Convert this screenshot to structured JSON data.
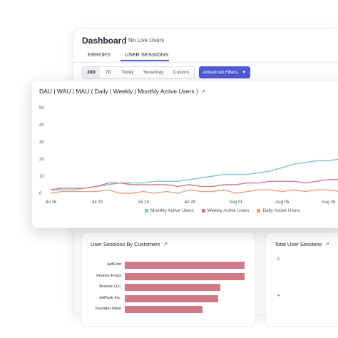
{
  "dashboard": {
    "title": "Dashboard",
    "live_users": "No Live Users",
    "tabs": [
      {
        "label": "ERRORS",
        "active": false
      },
      {
        "label": "USER SESSIONS",
        "active": true
      }
    ],
    "time_filters": [
      {
        "label": "30D",
        "selected": true
      },
      {
        "label": "7D",
        "selected": false
      },
      {
        "label": "Today",
        "selected": false
      },
      {
        "label": "Yesterday",
        "selected": false
      },
      {
        "label": "Custom",
        "selected": false
      }
    ],
    "advanced_filters_label": "Advanced Filters",
    "accent_color": "#4f5bd5"
  },
  "active_users_card": {
    "title": "DAU | WAU | MAU ( Daily | Weekly | Monthly Active Users )",
    "chart_data": {
      "type": "line",
      "x": [
        "Jul 16",
        "Jul 17",
        "Jul 18",
        "Jul 19",
        "Jul 20",
        "Jul 21",
        "Jul 22",
        "Jul 23",
        "Jul 24",
        "Jul 25",
        "Jul 26",
        "Jul 27",
        "Jul 28",
        "Jul 29",
        "Jul 30",
        "Jul 31",
        "Aug 01",
        "Aug 02",
        "Aug 03",
        "Aug 04",
        "Aug 05",
        "Aug 06",
        "Aug 07",
        "Aug 08",
        "Aug 09",
        "Aug 10"
      ],
      "x_tick_labels": [
        "Jul 16",
        "Jul 20",
        "Jul 24",
        "Jul 28",
        "Aug 01",
        "Aug 05",
        "Aug 09"
      ],
      "y_ticks": [
        0,
        10,
        20,
        30,
        40,
        50
      ],
      "ylim": [
        0,
        50
      ],
      "series": [
        {
          "name": "Monthly Active Users",
          "color": "#7fc4cf",
          "values": [
            2,
            2,
            2,
            3,
            4,
            5,
            6,
            6,
            6,
            7,
            7,
            7,
            8,
            9,
            10,
            11,
            11,
            11,
            12,
            13,
            15,
            17,
            18,
            19,
            19,
            20
          ]
        },
        {
          "name": "Weekly Active Users",
          "color": "#cf7a86",
          "values": [
            2,
            3,
            3,
            3,
            4,
            6,
            6,
            5,
            5,
            5,
            5,
            4,
            5,
            4,
            4,
            5,
            5,
            6,
            6,
            7,
            7,
            7,
            6,
            7,
            8,
            8
          ]
        },
        {
          "name": "Daily Active Users",
          "color": "#e8a07e",
          "values": [
            0,
            1,
            1,
            1,
            1,
            2,
            0,
            0,
            1,
            0,
            1,
            0,
            2,
            1,
            1,
            2,
            0,
            1,
            2,
            2,
            1,
            2,
            1,
            2,
            2,
            1
          ]
        }
      ]
    }
  },
  "customers_panel": {
    "title": "User Sessions By Customers",
    "chart_data": {
      "type": "bar",
      "categories": [
        "AidFirst",
        "Festive Fotos",
        "Brands LLC",
        "JetPack Inc.",
        "Founder Meet"
      ],
      "values": [
        100,
        100,
        80,
        78,
        65
      ],
      "color": "#cf7a86"
    }
  },
  "total_sessions_panel": {
    "title": "Total User Sessions",
    "y_ticks": [
      "6",
      "4"
    ]
  }
}
